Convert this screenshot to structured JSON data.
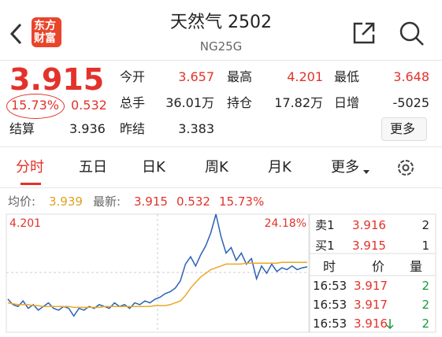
{
  "header": {
    "logo": [
      "东方",
      "财富"
    ],
    "title": "天然气 2502",
    "subtitle": "NG25G"
  },
  "quote": {
    "price": "3.915",
    "change_pct": "15.73%",
    "change": "0.532",
    "settle_label": "结算",
    "settle": "3.936",
    "stats": [
      [
        "今开",
        "3.657"
      ],
      [
        "最高",
        "4.201"
      ],
      [
        "最低",
        "3.648"
      ],
      [
        "总手",
        "36.01万"
      ],
      [
        "持仓",
        "17.82万"
      ],
      [
        "日增",
        "-5025"
      ],
      [
        "昨结",
        "3.383"
      ]
    ],
    "more": "更多"
  },
  "tabs": [
    "分时",
    "五日",
    "日K",
    "周K",
    "月K",
    "更多"
  ],
  "summary": {
    "avg_label": "均价:",
    "avg": "3.939",
    "latest_label": "最新:",
    "latest": "3.915",
    "change": "0.532",
    "change_pct": "15.73%"
  },
  "chart_data": {
    "type": "line",
    "ylim": [
      3.56,
      4.201
    ],
    "yticks": [
      {
        "value": 4.201,
        "label": "4.201"
      }
    ],
    "y2lim": [
      5.23,
      24.18
    ],
    "y2ticks": [
      {
        "value": 24.18,
        "label": "24.18%"
      }
    ],
    "series": [
      {
        "color": "#2a62b5",
        "values": [
          3.74,
          3.71,
          3.7,
          3.73,
          3.69,
          3.71,
          3.68,
          3.7,
          3.72,
          3.69,
          3.68,
          3.7,
          3.69,
          3.648,
          3.69,
          3.68,
          3.7,
          3.69,
          3.71,
          3.7,
          3.69,
          3.72,
          3.7,
          3.71,
          3.69,
          3.72,
          3.71,
          3.73,
          3.72,
          3.74,
          3.75,
          3.77,
          3.78,
          3.8,
          3.84,
          3.93,
          3.97,
          3.92,
          3.98,
          4.03,
          4.1,
          4.201,
          4.08,
          3.99,
          4.02,
          3.95,
          3.99,
          3.93,
          3.96,
          3.85,
          3.92,
          3.88,
          3.93,
          3.89,
          3.91,
          3.9,
          3.92,
          3.9,
          3.91,
          3.915
        ]
      },
      {
        "color": "#e9a825",
        "values": [
          3.72,
          3.715,
          3.71,
          3.71,
          3.71,
          3.705,
          3.705,
          3.7,
          3.7,
          3.7,
          3.7,
          3.7,
          3.7,
          3.695,
          3.695,
          3.695,
          3.695,
          3.695,
          3.695,
          3.7,
          3.7,
          3.7,
          3.7,
          3.7,
          3.7,
          3.7,
          3.7,
          3.7,
          3.7,
          3.705,
          3.705,
          3.705,
          3.71,
          3.72,
          3.73,
          3.76,
          3.8,
          3.83,
          3.86,
          3.88,
          3.9,
          3.91,
          3.92,
          3.93,
          3.93,
          3.93,
          3.93,
          3.935,
          3.935,
          3.935,
          3.935,
          3.935,
          3.935,
          3.935,
          3.94,
          3.94,
          3.94,
          3.939,
          3.939,
          3.939
        ]
      }
    ]
  },
  "order_book": {
    "asks": [
      [
        "卖1",
        "3.916",
        "2"
      ]
    ],
    "bids": [
      [
        "买1",
        "3.915",
        "1"
      ]
    ],
    "header": [
      "时",
      "价",
      "量"
    ],
    "trades": [
      [
        "16:53",
        "3.917",
        "2"
      ],
      [
        "16:53",
        "3.917",
        "2"
      ],
      [
        "16:53",
        "3.916",
        "2"
      ]
    ]
  }
}
